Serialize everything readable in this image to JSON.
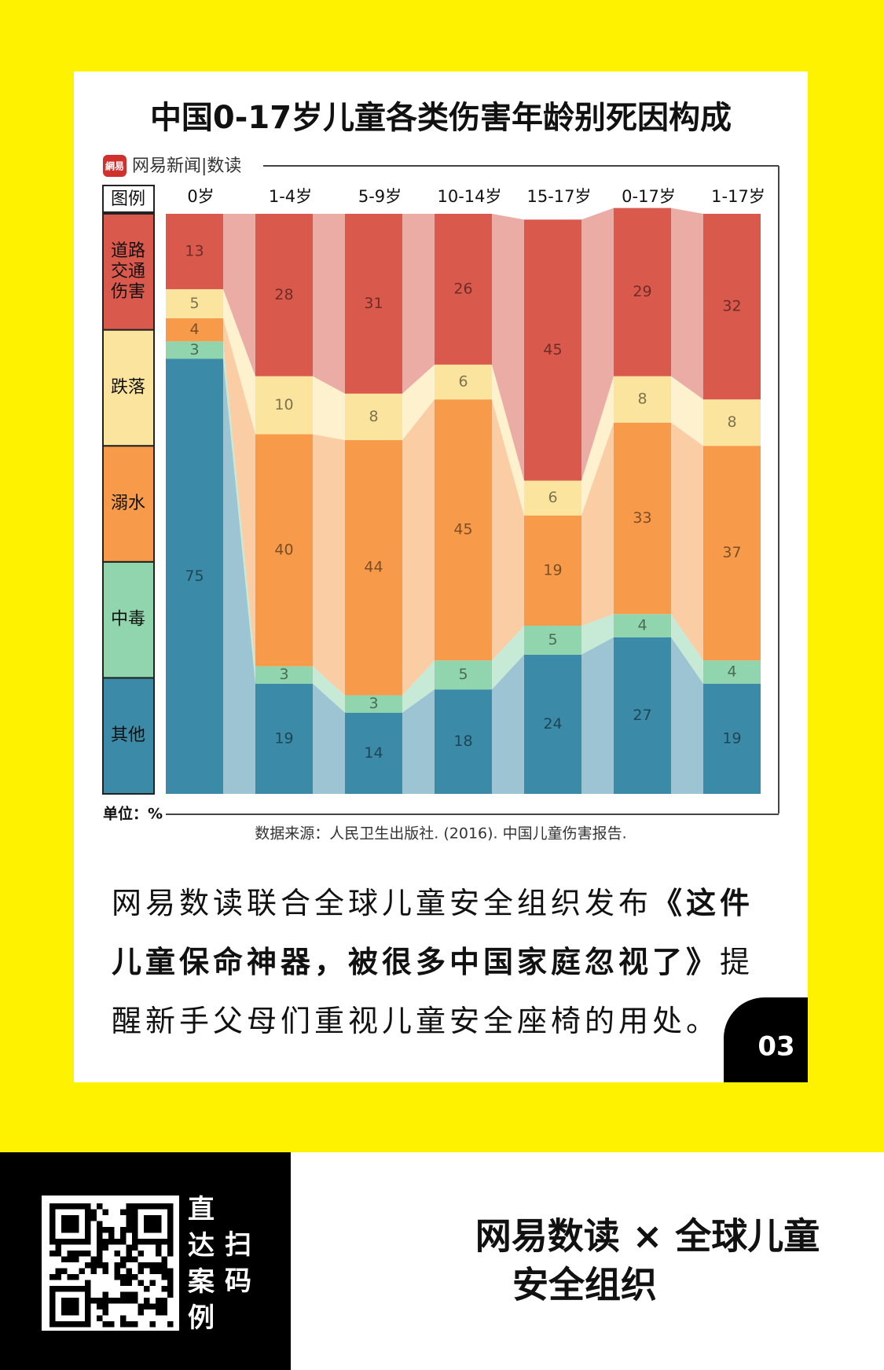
{
  "chart_data": {
    "type": "stacked_bar",
    "title": "中国0-17岁儿童各类伤害年龄别死因构成",
    "categories": [
      "0岁",
      "1-4岁",
      "5-9岁",
      "10-14岁",
      "15-17岁",
      "0-17岁",
      "1-17岁"
    ],
    "series": [
      {
        "name": "其他",
        "color": "#3b8aa8",
        "values": [
          75,
          19,
          14,
          18,
          24,
          27,
          19
        ]
      },
      {
        "name": "中毒",
        "color": "#90d5ad",
        "values": [
          3,
          3,
          3,
          5,
          5,
          4,
          4
        ]
      },
      {
        "name": "溺水",
        "color": "#f79b4b",
        "values": [
          4,
          40,
          44,
          45,
          19,
          33,
          37
        ]
      },
      {
        "name": "跌落",
        "color": "#fbe49d",
        "values": [
          5,
          10,
          8,
          6,
          6,
          8,
          8
        ]
      },
      {
        "name": "道路交通伤害",
        "color": "#da594d",
        "values": [
          13,
          28,
          31,
          26,
          45,
          29,
          32
        ]
      }
    ],
    "ylim": [
      0,
      100
    ],
    "legend_title": "图例",
    "unit": "单位：%"
  },
  "brand": "网易新闻|数读",
  "logo": "網易",
  "source": "数据来源：人民卫生出版社. (2016). 中国儿童伤害报告.",
  "body": {
    "before": "网易数读联合全球儿童安全组织发布",
    "bold": "《这件儿童保命神器，被很多中国家庭忽视了》",
    "after": "提醒新手父母们重视儿童安全座椅的用处。"
  },
  "badge": "03",
  "footer": {
    "scan_a": "直达案例",
    "scan_b": "扫码",
    "line1": "网易数读 × 全球儿童",
    "line2": "安全组织"
  }
}
